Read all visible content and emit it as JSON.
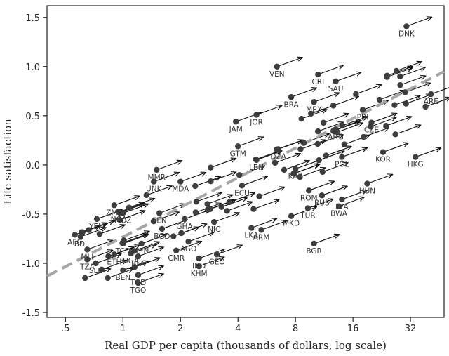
{
  "chart_data": {
    "type": "scatter",
    "xlabel": "Real GDP per capita (thousands of dollars, log scale)",
    "ylabel": "Life satisfaction",
    "x_scale": "log2",
    "xlim": [
      0.4,
      48
    ],
    "ylim": [
      -1.55,
      1.62
    ],
    "x_ticks": [
      0.5,
      1,
      2,
      4,
      8,
      16,
      32
    ],
    "x_tick_labels": [
      ".5",
      "1",
      "2",
      "4",
      "8",
      "16",
      "32"
    ],
    "y_ticks": [
      -1.5,
      -1.0,
      -0.5,
      0.0,
      0.5,
      1.0,
      1.5
    ],
    "y_tick_labels": [
      "-1.5",
      "-1.0",
      "-0.5",
      "0.0",
      "0.5",
      "1.0",
      "1.5"
    ],
    "grid": false,
    "trend_line": {
      "style": "dashed",
      "color": "#a6a6a6",
      "x": [
        0.4,
        48
      ],
      "y": [
        -1.13,
        0.95
      ]
    },
    "colors": {
      "points": "#3d3d3d",
      "arrows": "#111111",
      "trend": "#a6a6a6",
      "axis": "#222222"
    },
    "labeled_points": [
      {
        "label": "DNK",
        "x": 30.5,
        "y": 1.41
      },
      {
        "label": "VEN",
        "x": 6.4,
        "y": 1.0
      },
      {
        "label": "CRI",
        "x": 10.5,
        "y": 0.92
      },
      {
        "label": "SAU",
        "x": 13.0,
        "y": 0.85
      },
      {
        "label": "BRA",
        "x": 7.6,
        "y": 0.69
      },
      {
        "label": "MEX",
        "x": 10.0,
        "y": 0.64
      },
      {
        "label": "ARE",
        "x": 41.0,
        "y": 0.72
      },
      {
        "label": "JAM",
        "x": 3.9,
        "y": 0.44
      },
      {
        "label": "JOR",
        "x": 5.0,
        "y": 0.51
      },
      {
        "label": "ARG",
        "x": 13.0,
        "y": 0.36
      },
      {
        "label": "CZE",
        "x": 20.0,
        "y": 0.43
      },
      {
        "label": "PRI",
        "x": 18.0,
        "y": 0.56
      },
      {
        "label": "GTM",
        "x": 4.0,
        "y": 0.19
      },
      {
        "label": "DZA",
        "x": 6.5,
        "y": 0.16
      },
      {
        "label": "LBN",
        "x": 5.0,
        "y": 0.05
      },
      {
        "label": "POL",
        "x": 14.0,
        "y": 0.08
      },
      {
        "label": "KOR",
        "x": 23.0,
        "y": 0.13
      },
      {
        "label": "HKG",
        "x": 34.0,
        "y": 0.08
      },
      {
        "label": "MMR",
        "x": 1.5,
        "y": -0.05
      },
      {
        "label": "UNK",
        "x": 1.45,
        "y": -0.17
      },
      {
        "label": "MDA",
        "x": 2.0,
        "y": -0.17
      },
      {
        "label": "KAZ",
        "x": 8.0,
        "y": -0.04
      },
      {
        "label": "HUN",
        "x": 19.0,
        "y": -0.19
      },
      {
        "label": "ECU",
        "x": 4.2,
        "y": -0.21
      },
      {
        "label": "ROM",
        "x": 9.4,
        "y": -0.26
      },
      {
        "label": "RUS",
        "x": 11.0,
        "y": -0.31
      },
      {
        "label": "ZMB",
        "x": 0.9,
        "y": -0.41
      },
      {
        "label": "NGA",
        "x": 0.95,
        "y": -0.48
      },
      {
        "label": "YEM",
        "x": 0.73,
        "y": -0.55
      },
      {
        "label": "MOZ",
        "x": 1.0,
        "y": -0.49
      },
      {
        "label": "SEN",
        "x": 1.55,
        "y": -0.49
      },
      {
        "label": "GHA",
        "x": 2.1,
        "y": -0.55
      },
      {
        "label": "NIC",
        "x": 3.0,
        "y": -0.58
      },
      {
        "label": "BWA",
        "x": 13.5,
        "y": -0.42
      },
      {
        "label": "LVA",
        "x": 14.0,
        "y": -0.35
      },
      {
        "label": "TUR",
        "x": 9.3,
        "y": -0.44
      },
      {
        "label": "MKD",
        "x": 7.6,
        "y": -0.52
      },
      {
        "label": "LKA",
        "x": 4.7,
        "y": -0.64
      },
      {
        "label": "ARM",
        "x": 5.3,
        "y": -0.66
      },
      {
        "label": "BGD",
        "x": 1.6,
        "y": -0.65
      },
      {
        "label": "AFG",
        "x": 0.56,
        "y": -0.71
      },
      {
        "label": "BDI",
        "x": 0.6,
        "y": -0.73
      },
      {
        "label": "TCD",
        "x": 1.0,
        "y": -0.8
      },
      {
        "label": "KEN",
        "x": 1.25,
        "y": -0.8
      },
      {
        "label": "AGO",
        "x": 2.2,
        "y": -0.78
      },
      {
        "label": "MLI",
        "x": 0.65,
        "y": -0.86
      },
      {
        "label": "CMR",
        "x": 1.9,
        "y": -0.87
      },
      {
        "label": "ETH",
        "x": 0.9,
        "y": -0.91
      },
      {
        "label": "UGA",
        "x": 1.1,
        "y": -0.9
      },
      {
        "label": "TZA",
        "x": 0.65,
        "y": -0.96
      },
      {
        "label": "SLE",
        "x": 0.72,
        "y": -1.0
      },
      {
        "label": "BFA",
        "x": 1.2,
        "y": -0.93
      },
      {
        "label": "IND",
        "x": 2.5,
        "y": -0.95
      },
      {
        "label": "GEO",
        "x": 3.1,
        "y": -0.91
      },
      {
        "label": "KHM",
        "x": 2.5,
        "y": -1.03
      },
      {
        "label": "BGR",
        "x": 10.0,
        "y": -0.8
      },
      {
        "label": "BEN",
        "x": 1.0,
        "y": -1.07
      },
      {
        "label": "TGD",
        "x": 1.2,
        "y": -1.12
      },
      {
        "label": "TGO",
        "x": 1.2,
        "y": -1.2
      }
    ],
    "unlabeled_point_count": 70
  }
}
